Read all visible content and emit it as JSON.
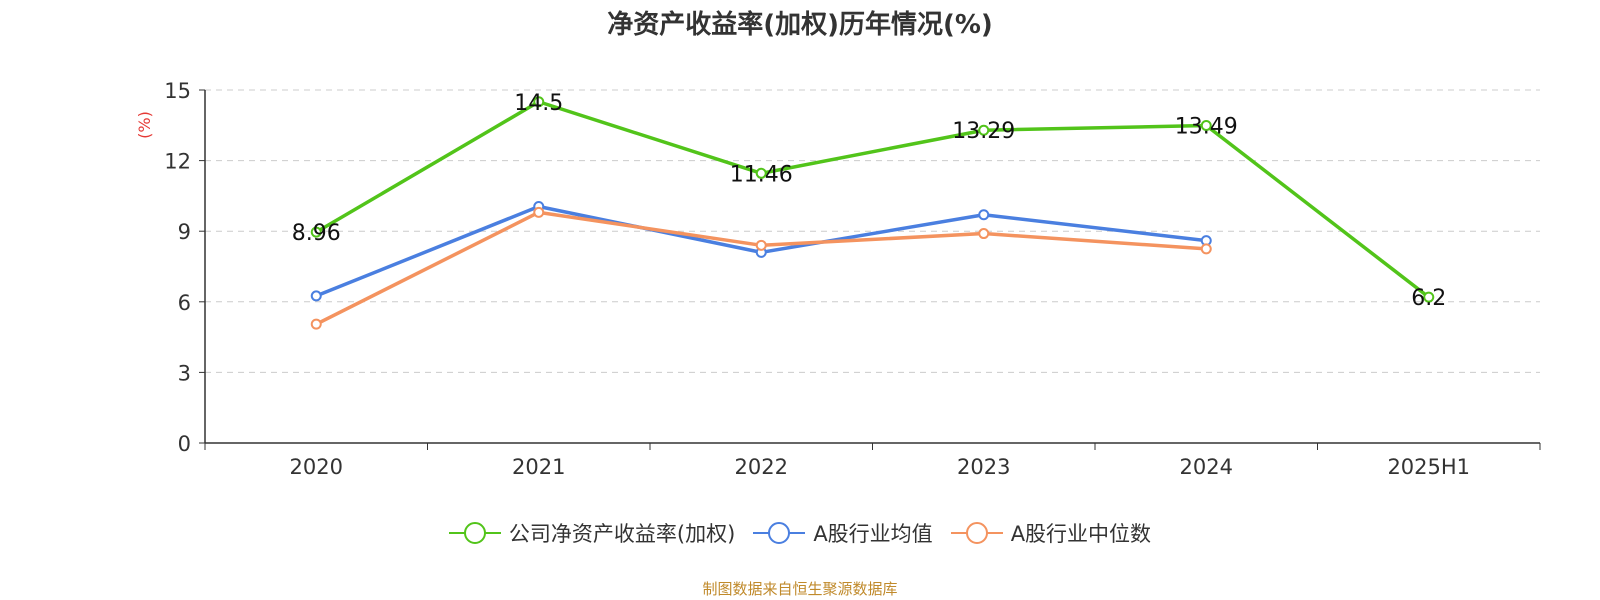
{
  "chart_data": {
    "type": "line",
    "title": "净资产收益率(加权)历年情况(%)",
    "ylabel": "(%)",
    "xlabel": "",
    "categories": [
      "2020",
      "2021",
      "2022",
      "2023",
      "2024",
      "2025H1"
    ],
    "ylim": [
      0,
      15
    ],
    "yticks": [
      0,
      3,
      6,
      9,
      12,
      15
    ],
    "grid": true,
    "legend_position": "bottom",
    "series": [
      {
        "name": "公司净资产收益率(加权)",
        "values": [
          8.96,
          14.5,
          11.46,
          13.29,
          13.49,
          6.2
        ],
        "labels": [
          "8.96",
          "14.5",
          "11.46",
          "13.29",
          "13.49",
          "6.2"
        ],
        "color": "#52c41a"
      },
      {
        "name": "A股行业均值",
        "values": [
          6.25,
          10.05,
          8.1,
          9.7,
          8.6,
          null
        ],
        "color": "#4a7fe0"
      },
      {
        "name": "A股行业中位数",
        "values": [
          5.05,
          9.8,
          8.4,
          8.9,
          8.25,
          null
        ],
        "color": "#f4935f"
      }
    ],
    "source_note": "制图数据来自恒生聚源数据库",
    "source_color": "#c08a2b",
    "ylabel_color": "#e53935"
  }
}
